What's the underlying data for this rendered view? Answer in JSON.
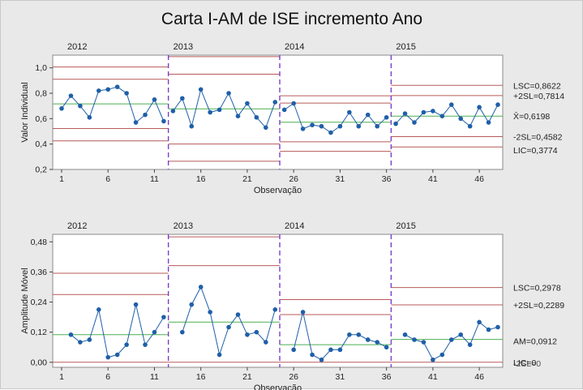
{
  "colors": {
    "background": "#e9e9e9",
    "plot_bg": "#ffffff",
    "data": "#1f5fa8",
    "center": "#4caf50",
    "limit": "#b85a5a",
    "phase_divider": "#7b3fc8"
  },
  "chart_data": {
    "type": "line",
    "title": "Carta I-AM de ISE incremento Ano",
    "phases": [
      "2012",
      "2013",
      "2014",
      "2015"
    ],
    "phase_start_obs": [
      1,
      13,
      25,
      37
    ],
    "xlabel": "Observação",
    "xticks": [
      "1",
      "6",
      "11",
      "16",
      "21",
      "26",
      "31",
      "36",
      "41",
      "46"
    ],
    "individual": {
      "ylabel": "Valor Individual",
      "ylim": [
        0.2,
        1.1
      ],
      "yticks": [
        "0,2",
        "0,4",
        "0,6",
        "0,8",
        "1,0"
      ],
      "values": [
        0.68,
        0.78,
        0.7,
        0.61,
        0.82,
        0.83,
        0.85,
        0.8,
        0.57,
        0.63,
        0.75,
        0.58,
        0.66,
        0.76,
        0.54,
        0.83,
        0.65,
        0.67,
        0.8,
        0.62,
        0.72,
        0.61,
        0.53,
        0.73,
        0.67,
        0.72,
        0.52,
        0.55,
        0.54,
        0.49,
        0.54,
        0.65,
        0.54,
        0.63,
        0.54,
        0.61,
        0.56,
        0.64,
        0.57,
        0.65,
        0.66,
        0.62,
        0.71,
        0.6,
        0.54,
        0.69,
        0.57,
        0.71
      ],
      "limits": [
        {
          "center": 0.716,
          "sl2_lo": 0.522,
          "sl2_hi": 0.91,
          "lic": 0.425,
          "lsc": 1.007
        },
        {
          "center": 0.677,
          "sl2_lo": 0.4,
          "sl2_hi": 0.95,
          "lic": 0.265,
          "lsc": 1.088
        },
        {
          "center": 0.572,
          "sl2_lo": 0.418,
          "sl2_hi": 0.723,
          "lic": 0.343,
          "lsc": 0.78
        },
        {
          "center": 0.6198,
          "sl2_lo": 0.4582,
          "sl2_hi": 0.7814,
          "lic": 0.3774,
          "lsc": 0.8622
        }
      ],
      "labels": {
        "lsc": "LSC=0,8622",
        "sl2_hi": "+2SL=0,7814",
        "center": "X̄=0,6198",
        "sl2_lo": "-2SL=0,4582",
        "lic": "LIC=0,3774"
      }
    },
    "moving_range": {
      "ylabel": "Amplitude Móvel",
      "ylim": [
        -0.02,
        0.51
      ],
      "yticks": [
        "0,00",
        "0,12",
        "0,24",
        "0,36",
        "0,48"
      ],
      "values": [
        null,
        0.11,
        0.08,
        0.09,
        0.21,
        0.02,
        0.03,
        0.07,
        0.23,
        0.07,
        0.12,
        0.18,
        null,
        0.12,
        0.23,
        0.3,
        0.2,
        0.03,
        0.14,
        0.19,
        0.11,
        0.12,
        0.08,
        0.21,
        null,
        0.05,
        0.2,
        0.03,
        0.01,
        0.05,
        0.05,
        0.11,
        0.11,
        0.09,
        0.08,
        0.06,
        null,
        0.11,
        0.09,
        0.08,
        0.01,
        0.03,
        0.09,
        0.11,
        0.07,
        0.16,
        0.13,
        0.14
      ],
      "limits": [
        {
          "center": 0.11,
          "lic": 0.0,
          "sl2": 0.27,
          "lsc": 0.355
        },
        {
          "center": 0.16,
          "lic": 0.0,
          "sl2": 0.385,
          "lsc": 0.5
        },
        {
          "center": 0.07,
          "lic": 0.0,
          "sl2": 0.19,
          "lsc": 0.25
        },
        {
          "center": 0.0912,
          "lic": 0.0,
          "sl2": 0.2289,
          "lsc": 0.2978
        }
      ],
      "labels": {
        "lsc": "LSC=0,2978",
        "sl2": "+2SL=0,2289",
        "center": "AM=0,0912",
        "lic": "LIC=0",
        "sl2_lo": "-2SL=0"
      }
    }
  }
}
